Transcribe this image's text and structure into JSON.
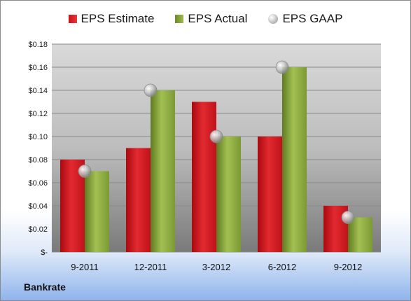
{
  "company": "Bankrate",
  "colors": {
    "estimate": "#d4141c",
    "actual": "#8aa83c",
    "gaap": "#c8c8c8"
  },
  "chart_data": {
    "type": "bar",
    "categories": [
      "9-2011",
      "12-2011",
      "3-2012",
      "6-2012",
      "9-2012"
    ],
    "series": [
      {
        "name": "EPS Estimate",
        "values": [
          0.08,
          0.09,
          0.13,
          0.1,
          0.04
        ]
      },
      {
        "name": "EPS Actual",
        "values": [
          0.07,
          0.14,
          0.1,
          0.16,
          0.03
        ]
      },
      {
        "name": "EPS GAAP",
        "values": [
          0.07,
          0.14,
          0.1,
          0.16,
          0.03
        ],
        "marker": "sphere"
      }
    ],
    "ylim": [
      0,
      0.18
    ],
    "yticks": [
      0,
      0.02,
      0.04,
      0.06,
      0.08,
      0.1,
      0.12,
      0.14,
      0.16,
      0.18
    ],
    "ytick_labels": [
      "$-",
      "$0.02",
      "$0.04",
      "$0.06",
      "$0.08",
      "$0.10",
      "$0.12",
      "$0.14",
      "$0.16",
      "$0.18"
    ],
    "grid": true,
    "legend_position": "top"
  }
}
